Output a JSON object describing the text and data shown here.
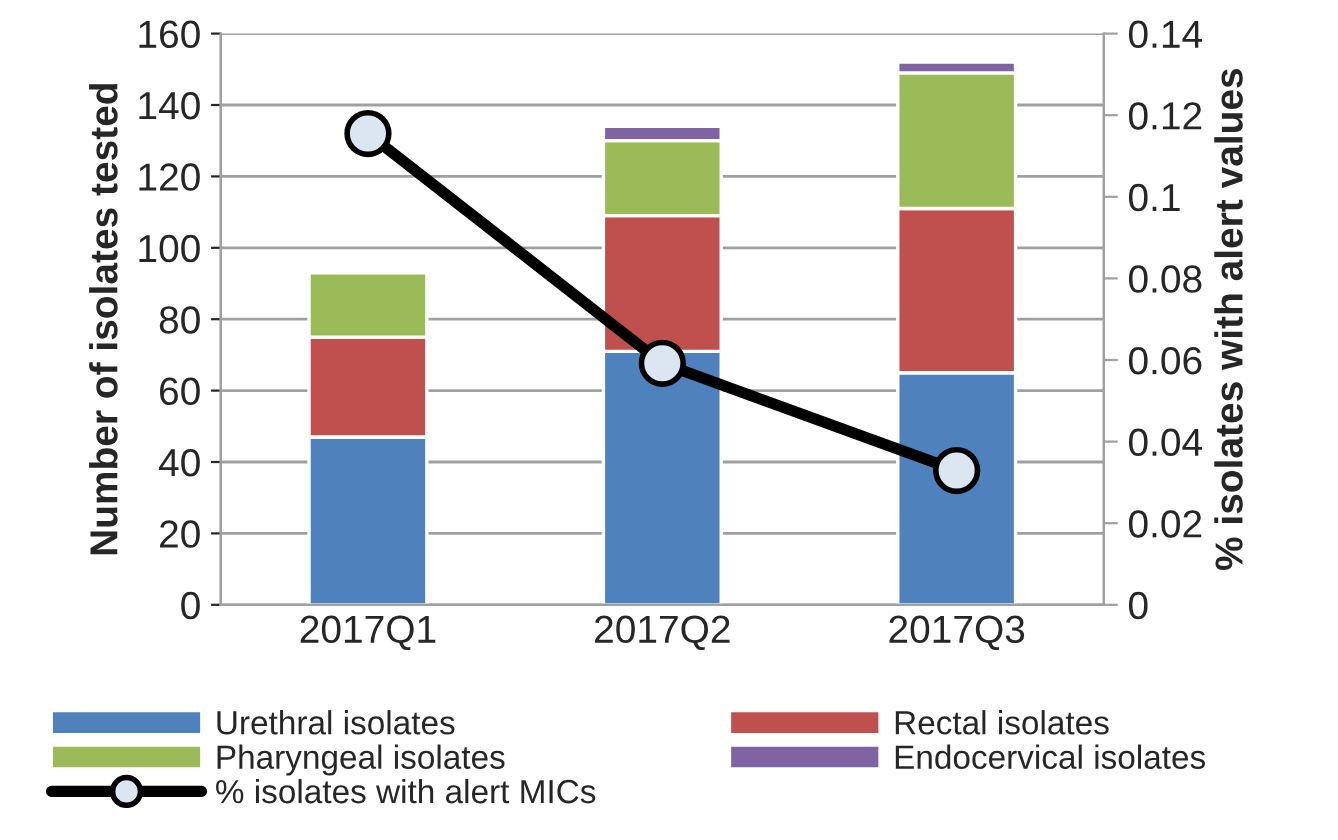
{
  "chart_data": {
    "type": "bar",
    "stacked": true,
    "categories": [
      "2017Q1",
      "2017Q2",
      "2017Q3"
    ],
    "ylabel": "Number of isolates tested",
    "y2label": "% isolates with alert values",
    "ylim": [
      0,
      160
    ],
    "yticks": [
      0,
      20,
      40,
      60,
      80,
      100,
      120,
      140,
      160
    ],
    "y2lim": [
      0,
      0.14
    ],
    "y2ticks": [
      {
        "value": 0,
        "label": "0"
      },
      {
        "value": 0.02,
        "label": "0.02"
      },
      {
        "value": 0.04,
        "label": "0.04"
      },
      {
        "value": 0.06,
        "label": "0.06"
      },
      {
        "value": 0.08,
        "label": "0.08"
      },
      {
        "value": 0.1,
        "label": "0.1"
      },
      {
        "value": 0.12,
        "label": "0.12"
      },
      {
        "value": 0.14,
        "label": "0.14"
      }
    ],
    "grid": "y",
    "legend": "bottom",
    "series": [
      {
        "name": "Urethral isolates",
        "color": "#4f81bd",
        "values": [
          47,
          71,
          65
        ]
      },
      {
        "name": "Rectal isolates",
        "color": "#c0504d",
        "values": [
          28,
          38,
          46
        ]
      },
      {
        "name": "Pharyngeal isolates",
        "color": "#9bbb59",
        "values": [
          18,
          21,
          38
        ]
      },
      {
        "name": "Endocervical isolates",
        "color": "#8064a2",
        "values": [
          null,
          4,
          3
        ]
      },
      {
        "name": "% isolates with alert MICs",
        "type": "line",
        "axis": "y2",
        "color": "#000000",
        "marker": "circle",
        "values": [
          0.1155,
          0.0592,
          0.0329
        ]
      }
    ]
  }
}
